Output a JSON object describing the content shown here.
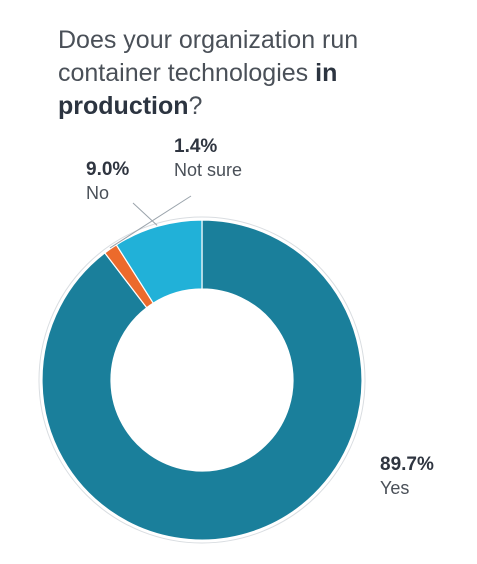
{
  "chart_data": {
    "type": "pie",
    "title_parts": [
      {
        "text": "Does your organization run container technologies ",
        "bold": false
      },
      {
        "text": "in production",
        "bold": true
      },
      {
        "text": "?",
        "bold": false
      }
    ],
    "slices": [
      {
        "name": "Yes",
        "value": 89.7,
        "label": "89.7%",
        "color": "#1a7f9b"
      },
      {
        "name": "Not sure",
        "value": 1.4,
        "label": "1.4%",
        "color": "#ec6a2c"
      },
      {
        "name": "No",
        "value": 9.0,
        "label": "9.0%",
        "color": "#21b1d8"
      }
    ],
    "donut": true,
    "legend": "none"
  }
}
